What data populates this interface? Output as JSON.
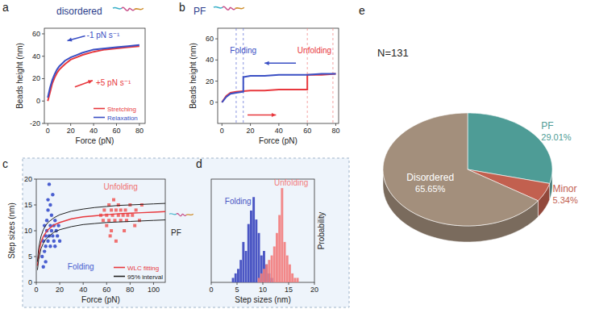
{
  "chart_data": [
    {
      "type": "line",
      "panel": "a",
      "title": "disordered",
      "x_label": "Force (pN)",
      "y_label": "Beads height (nm)",
      "xlim": [
        -3,
        85
      ],
      "ylim": [
        -20,
        65
      ],
      "xticks": [
        0,
        20,
        40,
        60,
        80
      ],
      "yticks": [
        -20,
        0,
        20,
        40,
        60
      ],
      "legend": "lower right",
      "series": [
        {
          "name": "Stretching",
          "color": "#e8383d",
          "x": [
            0,
            2,
            4,
            6,
            8,
            10,
            12,
            15,
            20,
            25,
            30,
            40,
            50,
            60,
            70,
            80
          ],
          "values": [
            0,
            8,
            16,
            21,
            25,
            28,
            30,
            33,
            37,
            39,
            41,
            44,
            46,
            47,
            48,
            49
          ]
        },
        {
          "name": "Relaxation",
          "color": "#3a4fc4",
          "x": [
            80,
            70,
            60,
            50,
            40,
            30,
            25,
            20,
            15,
            12,
            10,
            8,
            6,
            4,
            2,
            0
          ],
          "values": [
            50,
            49,
            48,
            47,
            46,
            43,
            41,
            39,
            36,
            33,
            31,
            28,
            24,
            19,
            12,
            3
          ]
        }
      ],
      "annotations": [
        {
          "text": "-1 pN s⁻¹",
          "x": 34,
          "y": 56,
          "color": "#3a4fc4"
        },
        {
          "text": "+5 pN s⁻¹",
          "x": 42,
          "y": 14,
          "color": "#e8383d"
        }
      ]
    },
    {
      "type": "line",
      "panel": "b",
      "title": "PF",
      "x_label": "Force (pN)",
      "y_label": "Beads height (nm)",
      "xlim": [
        -3,
        82
      ],
      "ylim": [
        -20,
        70
      ],
      "xticks": [
        0,
        20,
        40,
        60,
        80
      ],
      "yticks": [
        0,
        20,
        40,
        60
      ],
      "series": [
        {
          "name": "Unfolding",
          "color": "#e8383d",
          "x": [
            0,
            3,
            6,
            10,
            20,
            30,
            40,
            50,
            60,
            60,
            70,
            80
          ],
          "values": [
            0,
            6,
            9,
            10,
            11,
            11,
            12,
            12,
            12,
            26,
            26,
            27
          ]
        },
        {
          "name": "Folding",
          "color": "#3a4fc4",
          "x": [
            80,
            70,
            60,
            50,
            40,
            30,
            20,
            16,
            15,
            15,
            10,
            6,
            3,
            0
          ],
          "values": [
            27,
            27,
            26,
            26,
            26,
            25,
            25,
            24,
            24,
            10,
            9,
            8,
            5,
            0
          ]
        }
      ],
      "folding_forces": [
        10,
        15
      ],
      "unfolding_forces": [
        60,
        78
      ]
    },
    {
      "type": "scatter",
      "panel": "c",
      "x_label": "Force (pN)",
      "y_label": "Step sizes (nm)",
      "xlim": [
        0,
        110
      ],
      "ylim": [
        0,
        20
      ],
      "xticks": [
        0,
        20,
        40,
        60,
        80,
        100
      ],
      "yticks": [
        0,
        5,
        10,
        15,
        20
      ],
      "legend": "lower right",
      "series": [
        {
          "name": "Folding",
          "color": "#4a5fd0",
          "marker": "circle",
          "x": [
            5,
            6,
            7,
            7,
            8,
            8,
            9,
            9,
            10,
            10,
            11,
            11,
            12,
            12,
            13,
            13,
            14,
            15,
            15,
            16,
            17,
            18,
            19,
            20,
            8,
            10,
            12,
            14,
            6,
            16
          ],
          "values": [
            5,
            8,
            6,
            11,
            9,
            7,
            12,
            10,
            8,
            14,
            9,
            19,
            11,
            7,
            10,
            13,
            9,
            11,
            8,
            12,
            10,
            9,
            11,
            8,
            4,
            16,
            15,
            17,
            3,
            7
          ]
        },
        {
          "name": "Unfolding",
          "color": "#f07070",
          "marker": "square",
          "x": [
            55,
            57,
            58,
            60,
            60,
            62,
            62,
            63,
            64,
            65,
            66,
            67,
            68,
            68,
            70,
            70,
            72,
            72,
            74,
            75,
            76,
            77,
            78,
            80,
            82,
            84,
            85,
            88,
            90,
            64
          ],
          "values": [
            13,
            12,
            14,
            13,
            11,
            15,
            12,
            9,
            14,
            13,
            16,
            12,
            14,
            8,
            13,
            15,
            12,
            14,
            13,
            10,
            14,
            12,
            13,
            15,
            13,
            11,
            14,
            12,
            15,
            10
          ]
        },
        {
          "name": "WLC fitting",
          "color": "#e8383d",
          "type": "line",
          "x": [
            1,
            2,
            4,
            6,
            8,
            10,
            15,
            20,
            30,
            40,
            50,
            60,
            70,
            80,
            90,
            100,
            110
          ],
          "values": [
            3.2,
            5.5,
            7.7,
            8.9,
            9.6,
            10.2,
            11.1,
            11.6,
            12.3,
            12.7,
            12.9,
            13.1,
            13.3,
            13.4,
            13.5,
            13.6,
            13.7
          ]
        },
        {
          "name": "95% interval",
          "color": "#222222",
          "type": "line",
          "x": [
            1,
            2,
            4,
            6,
            8,
            10,
            15,
            20,
            30,
            40,
            50,
            60,
            70,
            80,
            90,
            100,
            110
          ],
          "values": [
            4.0,
            6.6,
            8.9,
            10.2,
            11.0,
            11.6,
            12.5,
            13.1,
            13.8,
            14.2,
            14.5,
            14.7,
            14.9,
            15.0,
            15.1,
            15.2,
            15.3
          ],
          "lower": [
            2.4,
            4.4,
            6.5,
            7.6,
            8.3,
            8.8,
            9.7,
            10.2,
            10.8,
            11.2,
            11.4,
            11.6,
            11.7,
            11.8,
            11.9,
            12.0,
            12.1
          ]
        }
      ],
      "annotations": [
        {
          "text": "PF"
        }
      ]
    },
    {
      "type": "histogram",
      "panel": "d",
      "x_label": "Step sizes (nm)",
      "y_label": "Probability",
      "xlim": [
        0,
        20
      ],
      "ylim": [
        0,
        0.23
      ],
      "xticks": [
        0,
        5,
        10,
        15,
        20
      ],
      "tick_labels": "x",
      "bins": [
        4,
        4.5,
        5,
        5.5,
        6,
        6.5,
        7,
        7.5,
        8,
        8.5,
        9,
        9.5,
        10,
        10.5,
        11,
        11.5,
        12,
        12.5,
        13,
        13.5,
        14,
        14.5,
        15,
        15.5,
        16,
        16.5,
        17
      ],
      "series": [
        {
          "name": "Folding",
          "color": "#4b56c4",
          "values": [
            0.01,
            0.02,
            0.03,
            0.05,
            0.09,
            0.07,
            0.13,
            0.16,
            0.19,
            0.14,
            0.11,
            0.06,
            0.07,
            0.04,
            0.02,
            0.01,
            0,
            0,
            0,
            0,
            0,
            0,
            0,
            0,
            0,
            0
          ]
        },
        {
          "name": "Unfolding",
          "color": "#f27c7c",
          "values": [
            0,
            0,
            0,
            0,
            0,
            0,
            0,
            0,
            0,
            0,
            0.01,
            0.02,
            0.03,
            0.04,
            0.05,
            0.06,
            0.08,
            0.11,
            0.15,
            0.21,
            0.09,
            0.06,
            0.04,
            0.02,
            0.01,
            0.01
          ]
        }
      ]
    },
    {
      "type": "pie",
      "panel": "e",
      "title": "N=131",
      "categories": [
        "PF",
        "Minor",
        "Disordered"
      ],
      "values": [
        29.01,
        5.34,
        65.65
      ],
      "value_labels": [
        "29.01%",
        "5.34%",
        "65.65%"
      ],
      "colors": [
        "#4e9c96",
        "#c2604f",
        "#a38f7c"
      ],
      "data_labels": true
    }
  ]
}
